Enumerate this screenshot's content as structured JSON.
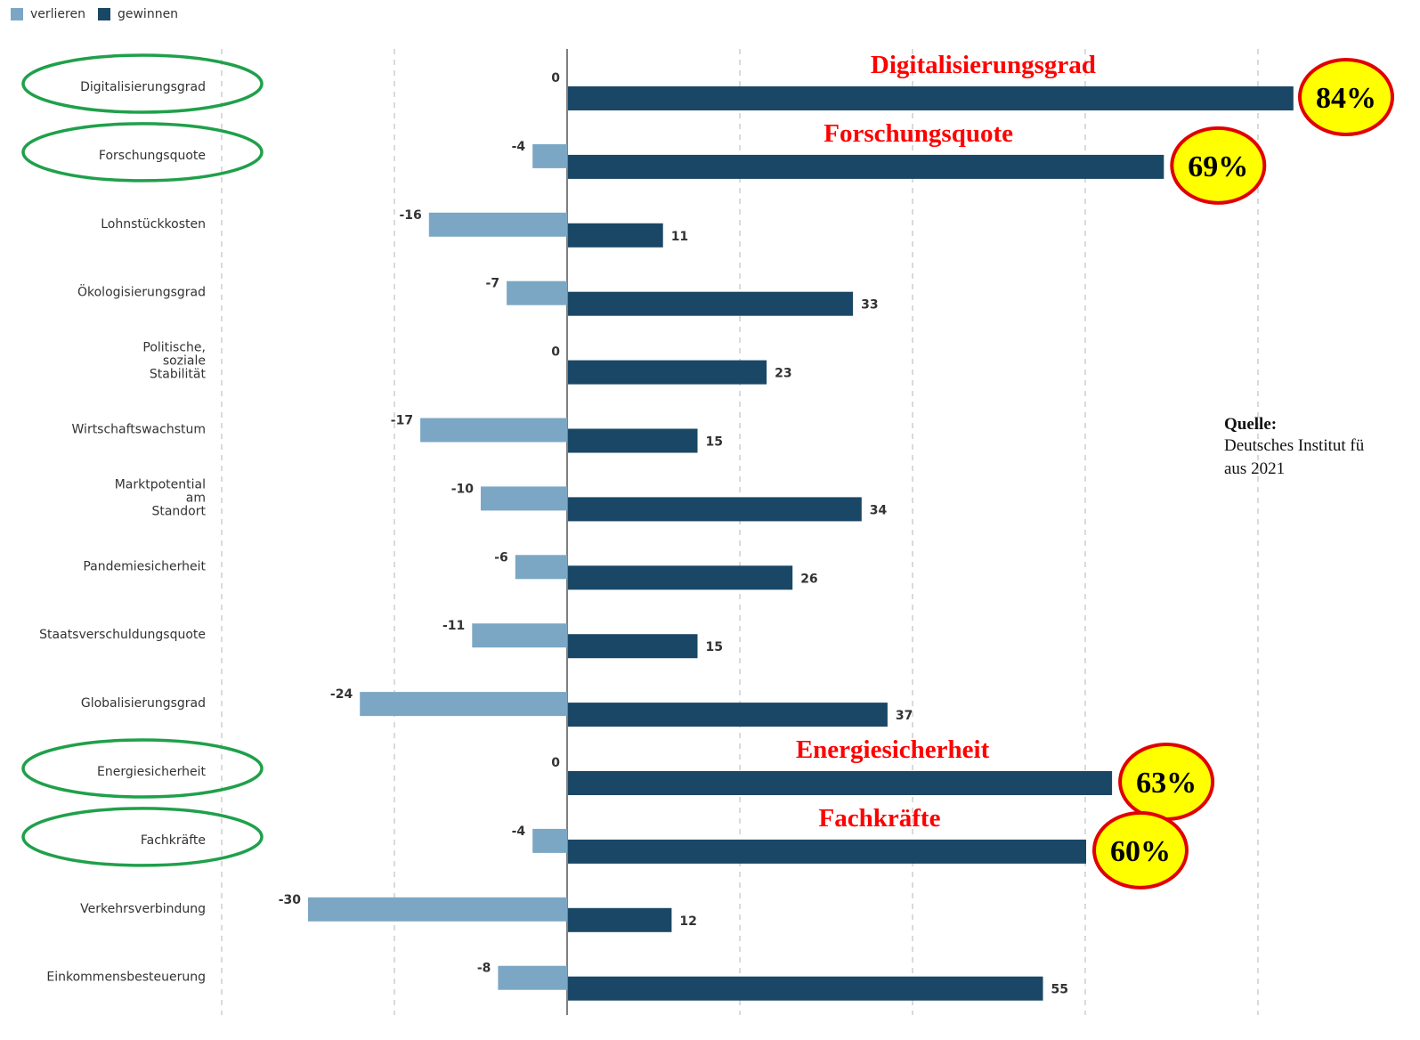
{
  "legend": {
    "losers_label": "verlieren",
    "winners_label": "gewinnen"
  },
  "source": {
    "title": "Quelle:",
    "line1": "Deutsches Institut fü",
    "line2": "aus 2021"
  },
  "colors": {
    "losers": "#7ba7c4",
    "winners": "#1a4766",
    "highlight_text": "#ff0000",
    "badge_fill": "#ffff00",
    "badge_stroke": "#e00000",
    "ellipse": "#1fa04a",
    "grid": "#b5b5b5",
    "label": "#333333"
  },
  "chart_data": {
    "type": "bar",
    "orientation": "horizontal",
    "categories": [
      "Digitalisierungsgrad",
      "Forschungsquote",
      "Lohnstückkosten",
      "Ökologisierungsgrad",
      "Politische,\nsoziale\nStabilität",
      "Wirtschaftswachstum",
      "Marktpotential\nam\nStandort",
      "Pandemiesicherheit",
      "Staatsverschuldungsquote",
      "Globalisierungsgrad",
      "Energiesicherheit",
      "Fachkräfte",
      "Verkehrsverbindung",
      "Einkommensbesteuerung"
    ],
    "series": [
      {
        "name": "verlieren",
        "values": [
          0,
          -4,
          -16,
          -7,
          0,
          -17,
          -10,
          -6,
          -11,
          -24,
          0,
          -4,
          -30,
          -8
        ]
      },
      {
        "name": "gewinnen",
        "values": [
          84,
          69,
          11,
          33,
          23,
          15,
          34,
          26,
          15,
          37,
          63,
          60,
          12,
          55
        ]
      }
    ],
    "value_labels_losers": [
      "0",
      "-4",
      "-16",
      "-7",
      "0",
      "-17",
      "-10",
      "-6",
      "-11",
      "-24",
      "0",
      "-4",
      "-30",
      "-8"
    ],
    "value_labels_winners": [
      "",
      "",
      "11",
      "33",
      "23",
      "15",
      "34",
      "26",
      "15",
      "37",
      "",
      "",
      "12",
      "55"
    ],
    "xlim": [
      -40,
      90
    ],
    "grid": true,
    "legend_position": "top-left",
    "highlights": [
      {
        "index": 0,
        "title": "Digitalisierungsgrad",
        "badge": "84%"
      },
      {
        "index": 1,
        "title": "Forschungsquote",
        "badge": "69%"
      },
      {
        "index": 10,
        "title": "Energiesicherheit",
        "badge": "63%"
      },
      {
        "index": 11,
        "title": "Fachkräfte",
        "badge": "60%"
      }
    ]
  }
}
